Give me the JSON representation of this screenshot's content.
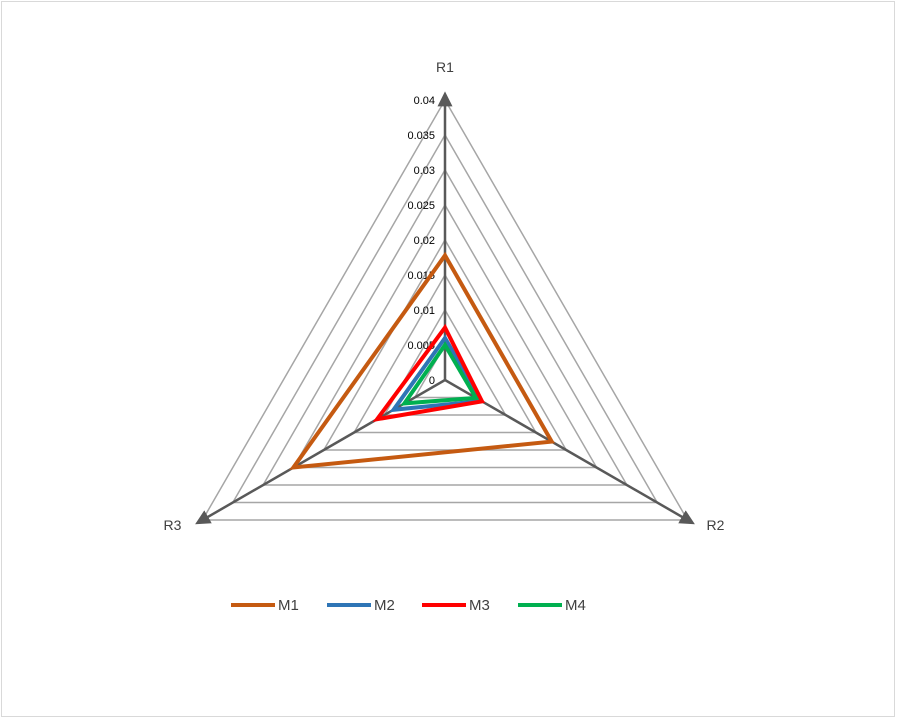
{
  "chart_data": {
    "type": "radar",
    "axes": [
      "R1",
      "R2",
      "R3"
    ],
    "rlim": [
      0,
      0.04
    ],
    "ticks": [
      "0",
      "0.005",
      "0.01",
      "0.015",
      "0.02",
      "0.025",
      "0.03",
      "0.035",
      "0.04"
    ],
    "tick_values": [
      0,
      0.005,
      0.01,
      0.015,
      0.02,
      0.025,
      0.03,
      0.035,
      0.04
    ],
    "grid": true,
    "legend_position": "bottom",
    "series": [
      {
        "name": "M1",
        "values": [
          0.0178,
          0.0176,
          0.025
        ],
        "color": "#C55A11"
      },
      {
        "name": "M2",
        "values": [
          0.006,
          0.006,
          0.0085
        ],
        "color": "#2E75B6"
      },
      {
        "name": "M3",
        "values": [
          0.0075,
          0.0061,
          0.0112
        ],
        "color": "#FF0000"
      },
      {
        "name": "M4",
        "values": [
          0.005,
          0.0051,
          0.0067
        ],
        "color": "#00B050"
      }
    ]
  }
}
